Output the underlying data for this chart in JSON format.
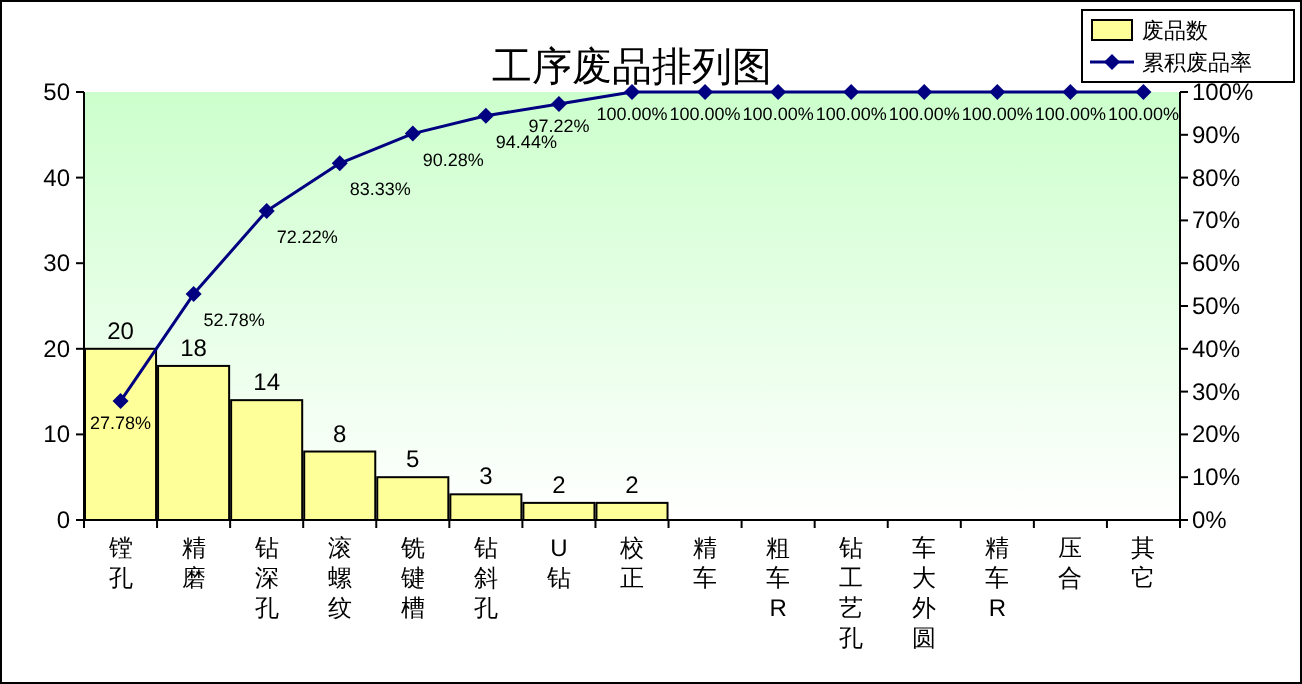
{
  "chart_data": {
    "type": "bar",
    "title": "工序废品排列图",
    "categories": [
      "镗孔",
      "精磨",
      "钻深孔",
      "滚螺纹",
      "铣键槽",
      "钻斜孔",
      "U钻",
      "校正",
      "精车",
      "粗车R",
      "钻工艺孔",
      "车大外圆",
      "精车R",
      "压合",
      "其它"
    ],
    "series": [
      {
        "name": "废品数",
        "type": "bar",
        "color": "#ffff99",
        "values": [
          20,
          18,
          14,
          8,
          5,
          3,
          2,
          2,
          0,
          0,
          0,
          0,
          0,
          0,
          0
        ],
        "value_labels": [
          "20",
          "18",
          "14",
          "8",
          "5",
          "3",
          "2",
          "2",
          null,
          null,
          null,
          null,
          null,
          null,
          null
        ]
      },
      {
        "name": "累积废品率",
        "type": "line",
        "axis": "y2",
        "color": "#000080",
        "marker": "diamond",
        "values": [
          27.78,
          52.78,
          72.22,
          83.33,
          90.28,
          94.44,
          97.22,
          100,
          100,
          100,
          100,
          100,
          100,
          100,
          100
        ],
        "value_labels": [
          "27.78%",
          "52.78%",
          "72.22%",
          "83.33%",
          "90.28%",
          "94.44%",
          "97.22%",
          "100.00%",
          "100.00%",
          "100.00%",
          "100.00%",
          "100.00%",
          "100.00%",
          "100.00%",
          "100.00%"
        ]
      }
    ],
    "ylim": [
      0,
      50
    ],
    "yticks": [
      0,
      10,
      20,
      30,
      40,
      50
    ],
    "y2lim": [
      0,
      100
    ],
    "y2ticks": [
      {
        "value": 0,
        "label": "0%"
      },
      {
        "value": 10,
        "label": "10%"
      },
      {
        "value": 20,
        "label": "20%"
      },
      {
        "value": 30,
        "label": "30%"
      },
      {
        "value": 40,
        "label": "40%"
      },
      {
        "value": 50,
        "label": "50%"
      },
      {
        "value": 60,
        "label": "60%"
      },
      {
        "value": 70,
        "label": "70%"
      },
      {
        "value": 80,
        "label": "80%"
      },
      {
        "value": 90,
        "label": "90%"
      },
      {
        "value": 100,
        "label": "100%"
      }
    ],
    "grid": false,
    "legend": "top right"
  }
}
